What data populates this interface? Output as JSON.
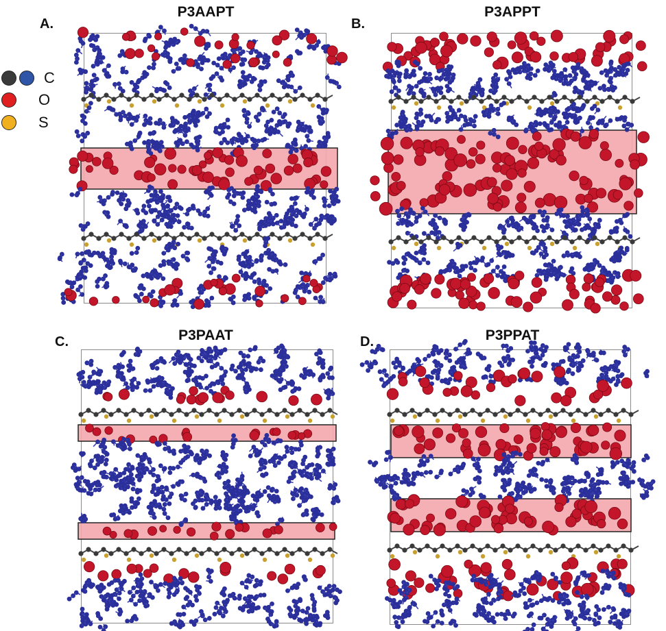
{
  "legend": {
    "items": [
      {
        "label": "C",
        "colors": [
          "#3a3a3a",
          "#2f55a8"
        ]
      },
      {
        "label": "O",
        "colors": [
          "#e02020"
        ]
      },
      {
        "label": "S",
        "colors": [
          "#f0b020"
        ]
      }
    ]
  },
  "panels": [
    {
      "id": "A",
      "letter": "A.",
      "title": "P3AAPT",
      "highlight_color": "#f4a7ae"
    },
    {
      "id": "B",
      "letter": "B.",
      "title": "P3APPT",
      "highlight_color": "#f4a7ae"
    },
    {
      "id": "C",
      "letter": "C.",
      "title": "P3PAAT",
      "highlight_color": "#f4a7ae"
    },
    {
      "id": "D",
      "letter": "D.",
      "title": "P3PPAT",
      "highlight_color": "#f4a7ae"
    }
  ],
  "colors": {
    "chain_blue": "#2a2f9a",
    "oxygen_red": "#c4162a",
    "backbone_dark": "#3a3a3a",
    "sulfur_gold": "#c9a030",
    "highlight_fill": "#f4a7ae",
    "box_border": "#8a8a8a"
  }
}
